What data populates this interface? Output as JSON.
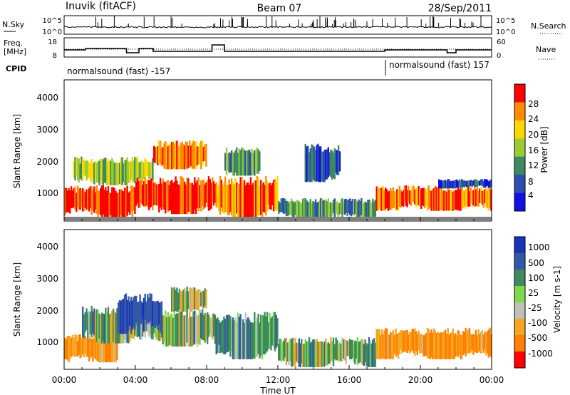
{
  "header": {
    "station": "Inuvik (fitACF)",
    "beam": "Beam 07",
    "date": "28/Sep/2011"
  },
  "noise_panel": {
    "left_label": "N.Sky",
    "right_label": "N.Search",
    "left_ticks": [
      "10^5",
      "10^0"
    ],
    "right_ticks": [
      "10^5",
      "10^0"
    ]
  },
  "freq_panel": {
    "left_label_1": "Freq.",
    "left_label_2": "[MHz]",
    "right_label": "Nave",
    "left_ticks": [
      "18",
      "8"
    ],
    "right_ticks": [
      "60",
      "0"
    ]
  },
  "cpid": {
    "label": "CPID",
    "segments": [
      {
        "start_hour": 0,
        "text": "normalsound (fast) -157"
      },
      {
        "start_hour": 18,
        "text": "normalsound (fast) 157"
      }
    ]
  },
  "power_panel": {
    "ylabel": "Slant Range [km]",
    "yticks": [
      "1000",
      "2000",
      "3000",
      "4000"
    ],
    "colorbar_label": "Power [dB]",
    "colorbar_ticks": [
      "4",
      "8",
      "12",
      "16",
      "20",
      "24",
      "28"
    ]
  },
  "velocity_panel": {
    "ylabel": "Slant Range [km]",
    "yticks": [
      "1000",
      "2000",
      "3000",
      "4000"
    ],
    "colorbar_label": "Velocity [m s-1]",
    "colorbar_ticks": [
      "1000",
      "500",
      "100",
      "25",
      "-25",
      "-100",
      "-500",
      "-1000"
    ]
  },
  "xaxis": {
    "label": "Time UT",
    "ticks": [
      "00:00",
      "04:00",
      "08:00",
      "12:00",
      "16:00",
      "20:00",
      "00:00"
    ]
  },
  "chart_data": {
    "type": "heatmap",
    "x_range_hours": [
      0,
      24
    ],
    "y_range_km": [
      180,
      4600
    ],
    "power_colorscale": [
      {
        "value": 4,
        "color": "#1010e0"
      },
      {
        "value": 8,
        "color": "#2d4fb0"
      },
      {
        "value": 12,
        "color": "#3e8a60"
      },
      {
        "value": 16,
        "color": "#9acd32"
      },
      {
        "value": 20,
        "color": "#ffd700"
      },
      {
        "value": 24,
        "color": "#ff8c00"
      },
      {
        "value": 28,
        "color": "#ff0000"
      }
    ],
    "velocity_colorscale": [
      {
        "value": 1000,
        "color": "#1a33b8"
      },
      {
        "value": 500,
        "color": "#3358a8"
      },
      {
        "value": 100,
        "color": "#3e8a60"
      },
      {
        "value": 25,
        "color": "#7dd94a"
      },
      {
        "value": -25,
        "color": "#c0c0b8"
      },
      {
        "value": -100,
        "color": "#f5a623"
      },
      {
        "value": -500,
        "color": "#ff7f00"
      },
      {
        "value": -1000,
        "color": "#ff0000"
      }
    ],
    "power_echo_regions": [
      {
        "t0": 0.0,
        "t1": 4.0,
        "r0": 300,
        "r1": 1300,
        "power": 28
      },
      {
        "t0": 0.5,
        "t1": 5.0,
        "r0": 1300,
        "r1": 2200,
        "power": 16
      },
      {
        "t0": 4.0,
        "t1": 8.5,
        "r0": 400,
        "r1": 1600,
        "power": 28
      },
      {
        "t0": 5.0,
        "t1": 8.0,
        "r0": 1800,
        "r1": 2700,
        "power": 24
      },
      {
        "t0": 8.5,
        "t1": 12.0,
        "r0": 300,
        "r1": 1600,
        "power": 24
      },
      {
        "t0": 9.0,
        "t1": 11.0,
        "r0": 1600,
        "r1": 2500,
        "power": 12
      },
      {
        "t0": 12.0,
        "t1": 17.5,
        "r0": 250,
        "r1": 900,
        "power": 12
      },
      {
        "t0": 13.5,
        "t1": 15.5,
        "r0": 1400,
        "r1": 2600,
        "power": 8
      },
      {
        "t0": 17.5,
        "t1": 24.0,
        "r0": 500,
        "r1": 1300,
        "power": 24
      },
      {
        "t0": 21.0,
        "t1": 24.0,
        "r0": 1200,
        "r1": 1500,
        "power": 8
      }
    ],
    "velocity_echo_regions": [
      {
        "t0": 0.0,
        "t1": 3.0,
        "r0": 400,
        "r1": 1300,
        "velocity": -300
      },
      {
        "t0": 1.0,
        "t1": 5.5,
        "r0": 1000,
        "r1": 2200,
        "velocity": 100
      },
      {
        "t0": 3.0,
        "t1": 5.5,
        "r0": 1300,
        "r1": 2600,
        "velocity": 700
      },
      {
        "t0": 5.5,
        "t1": 8.5,
        "r0": 900,
        "r1": 2100,
        "velocity": 100
      },
      {
        "t0": 6.0,
        "t1": 8.0,
        "r0": 2000,
        "r1": 2800,
        "velocity": 0
      },
      {
        "t0": 8.5,
        "t1": 12.0,
        "r0": 500,
        "r1": 2000,
        "velocity": 200
      },
      {
        "t0": 12.0,
        "t1": 17.5,
        "r0": 250,
        "r1": 1200,
        "velocity": 100
      },
      {
        "t0": 17.5,
        "t1": 24.0,
        "r0": 500,
        "r1": 1500,
        "velocity": -300
      }
    ]
  }
}
